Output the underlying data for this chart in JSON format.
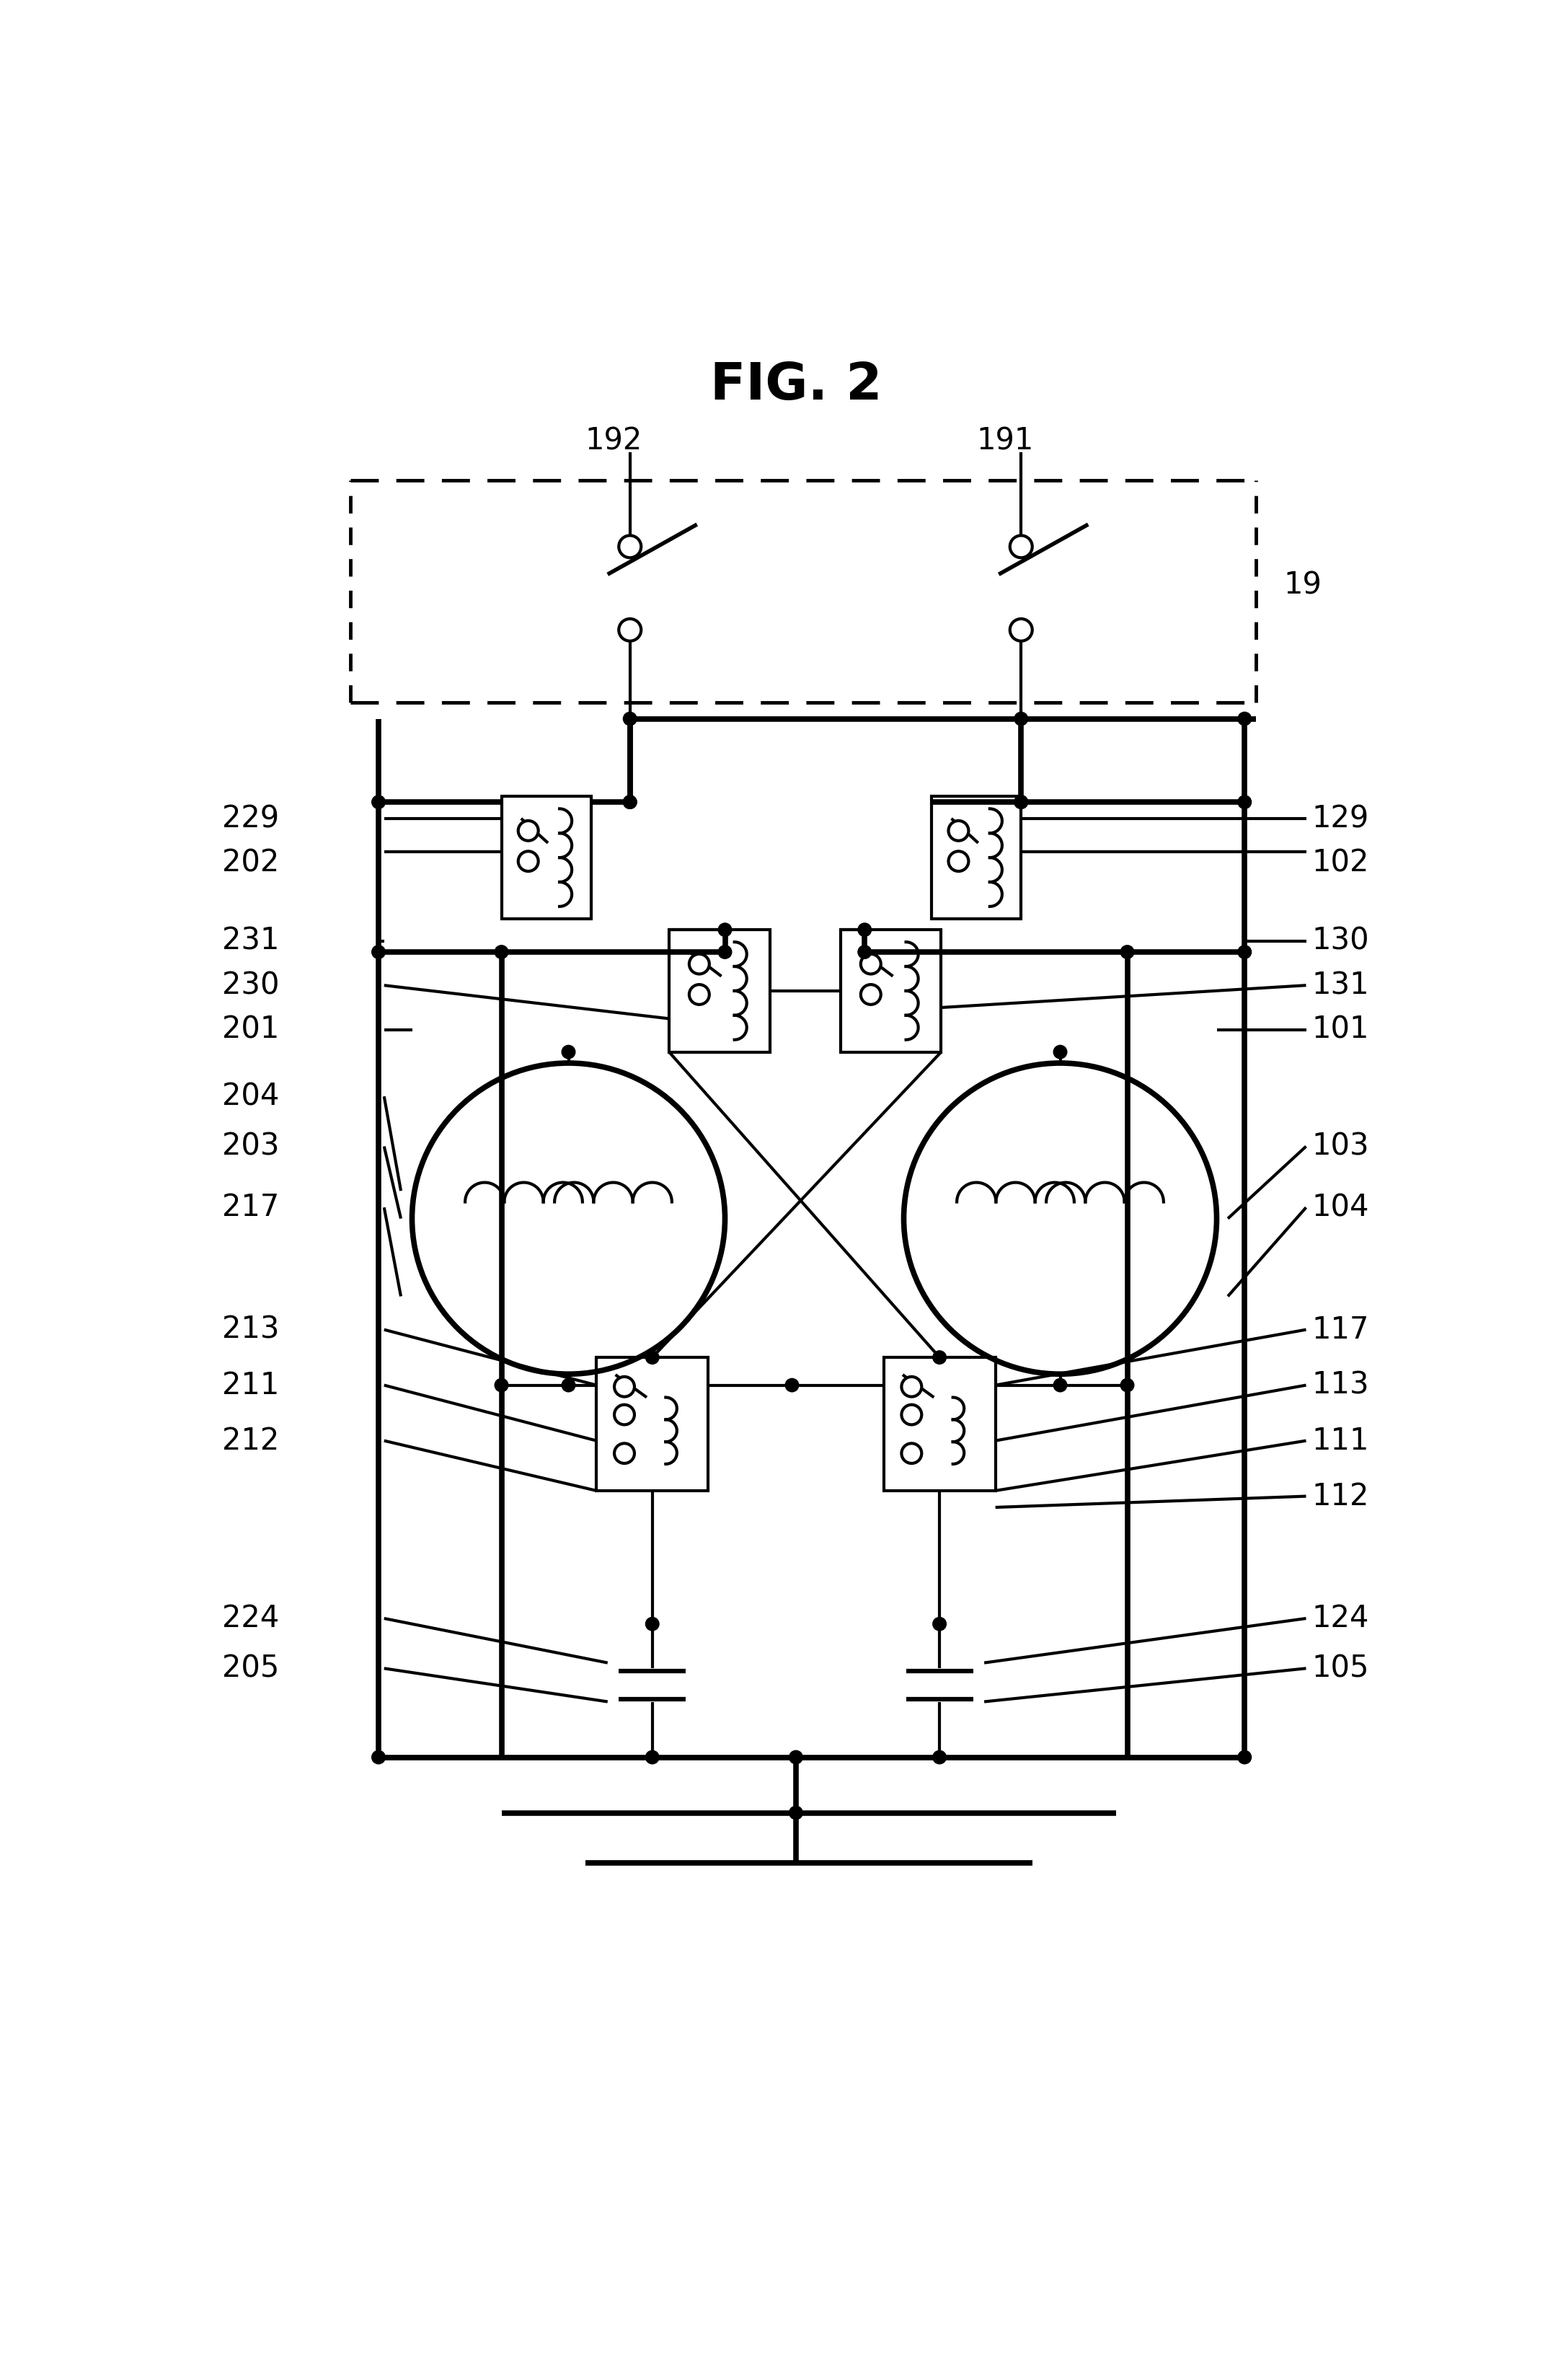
{
  "title": "FIG. 2",
  "bg": "#ffffff",
  "lc": "#000000",
  "lw": 3.0,
  "tlw": 5.5,
  "fw": 21.54,
  "fh": 33.0,
  "dpi": 100,
  "title_fs": 52,
  "label_fs": 30
}
